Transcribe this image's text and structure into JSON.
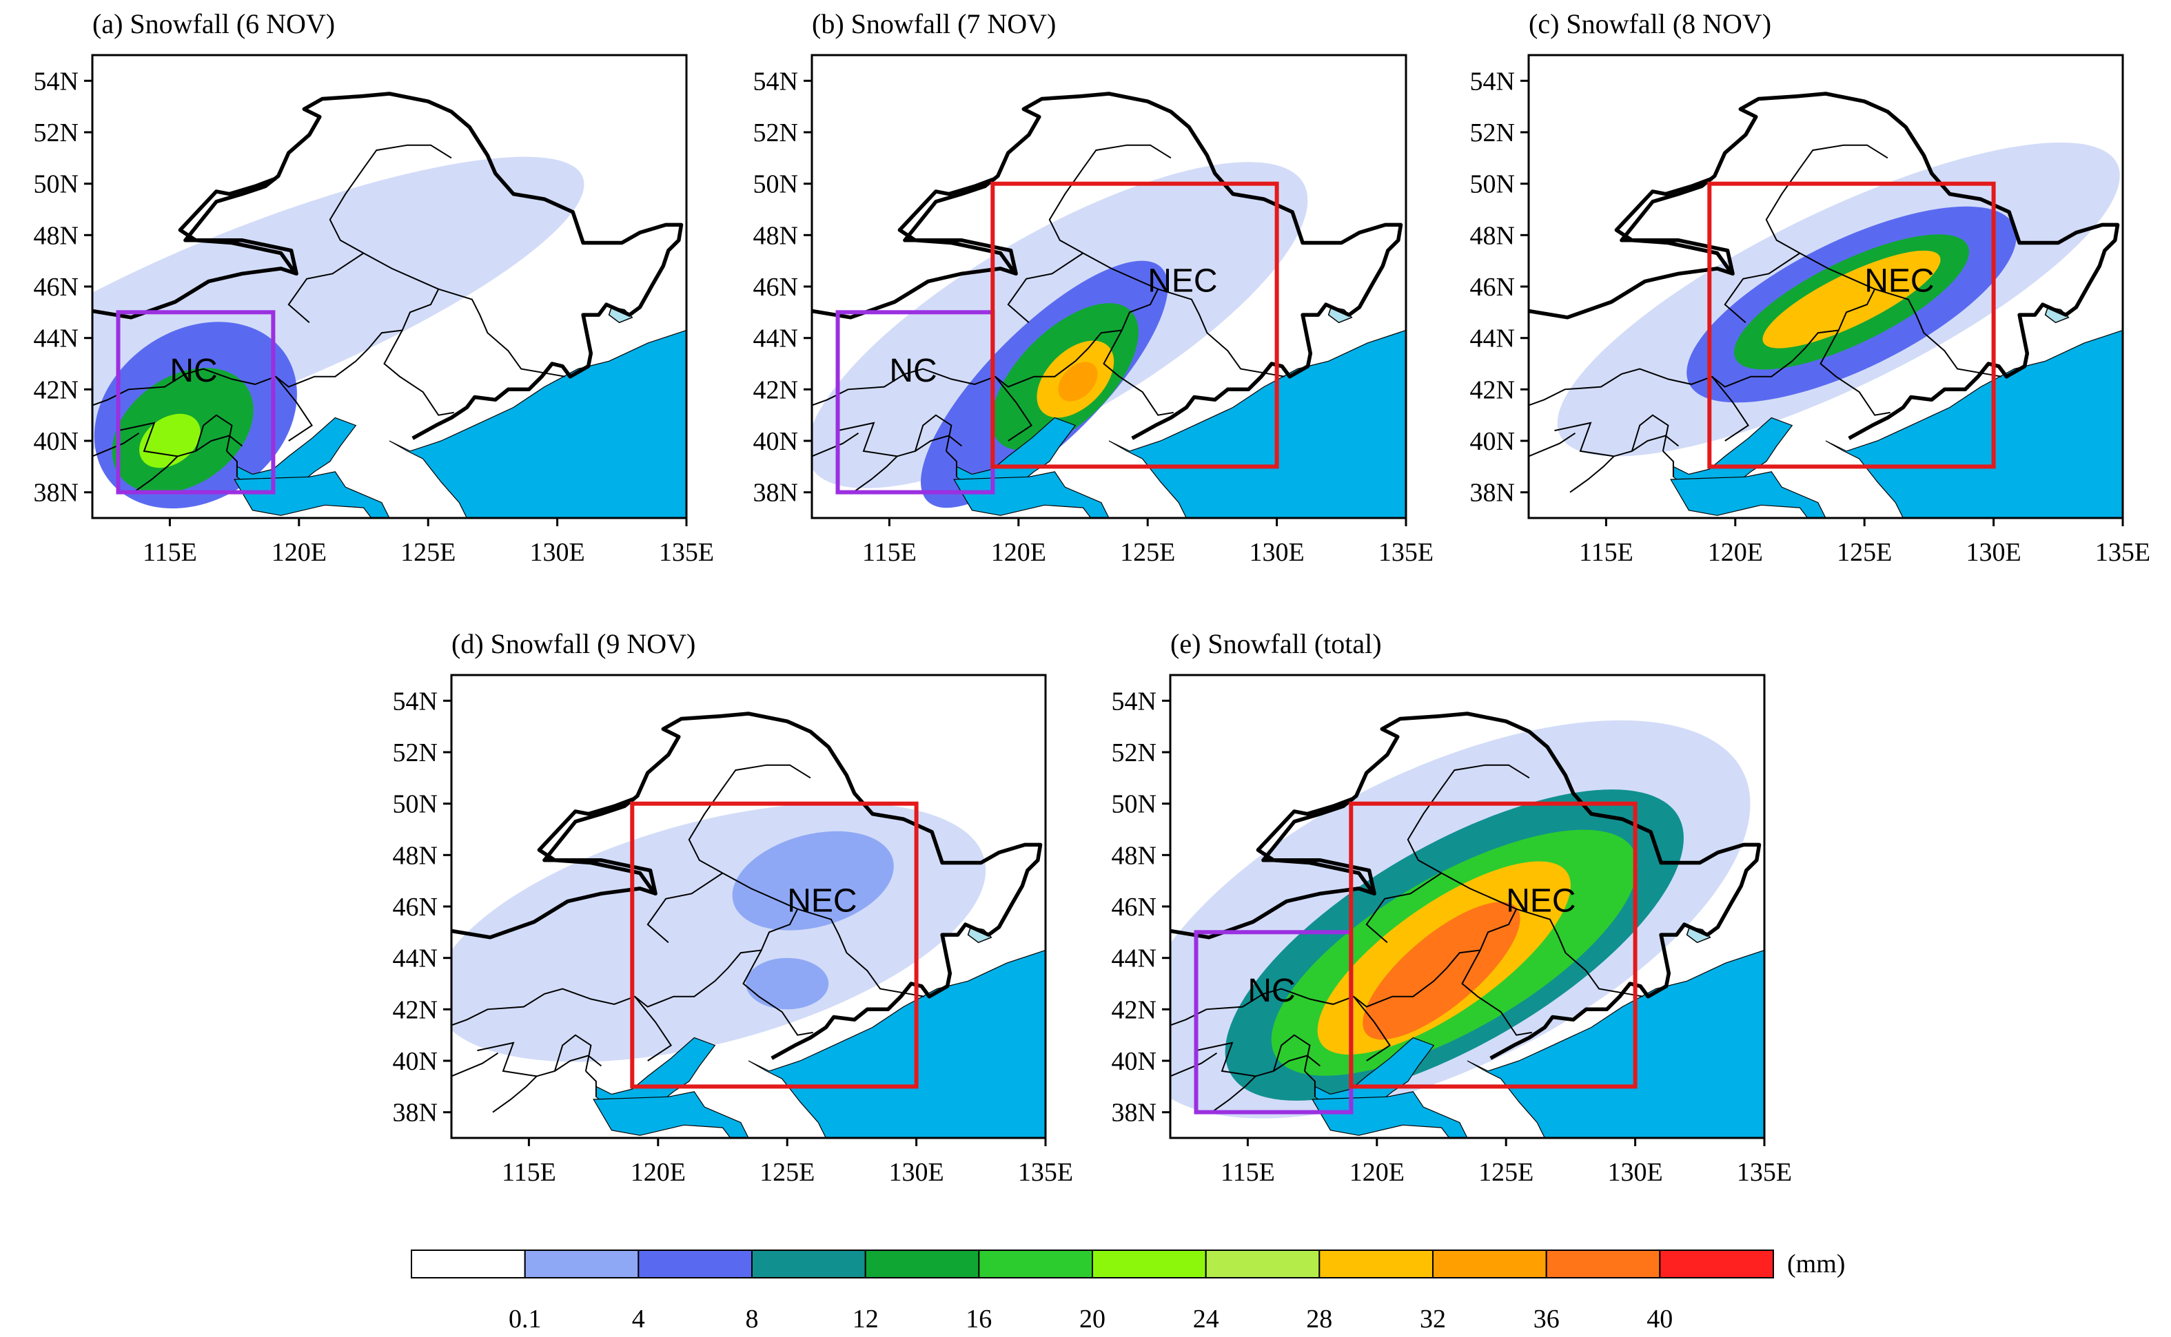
{
  "panels": [
    {
      "id": "a",
      "title": "(a) Snowfall (6 NOV)",
      "boxes": [
        {
          "kind": "NC",
          "label": "NC",
          "lon": [
            113,
            119
          ],
          "lat": [
            38,
            45
          ],
          "color": "#9b30e0"
        }
      ],
      "snow_cores": [
        {
          "lon": 118,
          "lat": 45,
          "rx": 14,
          "ry": 3.2,
          "rot": -22,
          "level": 1
        },
        {
          "lon": 116,
          "lat": 41,
          "rx": 4.2,
          "ry": 3.3,
          "rot": -35,
          "level": 3
        },
        {
          "lon": 115.5,
          "lat": 40.4,
          "rx": 3.0,
          "ry": 2.1,
          "rot": -35,
          "level": 5
        },
        {
          "lon": 115,
          "lat": 40.0,
          "rx": 1.3,
          "ry": 0.9,
          "rot": -35,
          "level": 7
        }
      ]
    },
    {
      "id": "b",
      "title": "(b) Snowfall (7 NOV)",
      "boxes": [
        {
          "kind": "NC",
          "label": "NC",
          "lon": [
            113,
            119
          ],
          "lat": [
            38,
            45
          ],
          "color": "#9b30e0"
        },
        {
          "kind": "NEC",
          "label": "NEC",
          "lon": [
            119,
            130
          ],
          "lat": [
            39,
            50
          ],
          "color": "#e31a1c"
        }
      ],
      "snow_cores": [
        {
          "lon": 121.5,
          "lat": 44.5,
          "rx": 11,
          "ry": 3.6,
          "rot": -30,
          "level": 1
        },
        {
          "lon": 121,
          "lat": 42.2,
          "rx": 6.4,
          "ry": 2.2,
          "rot": -45,
          "level": 3
        },
        {
          "lon": 121.8,
          "lat": 42.5,
          "rx": 3.6,
          "ry": 1.8,
          "rot": -45,
          "level": 5
        },
        {
          "lon": 122.2,
          "lat": 42.4,
          "rx": 1.8,
          "ry": 1.1,
          "rot": -45,
          "level": 9
        },
        {
          "lon": 122.3,
          "lat": 42.3,
          "rx": 0.9,
          "ry": 0.6,
          "rot": -45,
          "level": 10
        }
      ]
    },
    {
      "id": "c",
      "title": "(c) Snowfall (8 NOV)",
      "boxes": [
        {
          "kind": "NEC",
          "label": "NEC",
          "lon": [
            119,
            130
          ],
          "lat": [
            39,
            50
          ],
          "color": "#e31a1c"
        }
      ],
      "snow_cores": [
        {
          "lon": 124,
          "lat": 45.5,
          "rx": 12,
          "ry": 3.4,
          "rot": -26,
          "level": 1
        },
        {
          "lon": 124.5,
          "lat": 45.3,
          "rx": 7,
          "ry": 2.5,
          "rot": -26,
          "level": 3
        },
        {
          "lon": 124.5,
          "lat": 45.4,
          "rx": 5,
          "ry": 1.6,
          "rot": -26,
          "level": 5
        },
        {
          "lon": 124.5,
          "lat": 45.5,
          "rx": 3.8,
          "ry": 1.0,
          "rot": -26,
          "level": 9
        }
      ]
    },
    {
      "id": "d",
      "title": "(d) Snowfall (9 NOV)",
      "boxes": [
        {
          "kind": "NEC",
          "label": "NEC",
          "lon": [
            119,
            130
          ],
          "lat": [
            39,
            50
          ],
          "color": "#e31a1c"
        }
      ],
      "snow_cores": [
        {
          "lon": 122,
          "lat": 45,
          "rx": 11,
          "ry": 4.3,
          "rot": -15,
          "level": 1
        },
        {
          "lon": 126,
          "lat": 47,
          "rx": 3.2,
          "ry": 1.8,
          "rot": -15,
          "level": 2
        },
        {
          "lon": 125,
          "lat": 43,
          "rx": 1.6,
          "ry": 1.0,
          "rot": 0,
          "level": 2
        }
      ]
    },
    {
      "id": "e",
      "title": "(e) Snowfall (total)",
      "boxes": [
        {
          "kind": "NC",
          "label": "NC",
          "lon": [
            113,
            119
          ],
          "lat": [
            38,
            45
          ],
          "color": "#9b30e0"
        },
        {
          "kind": "NEC",
          "label": "NEC",
          "lon": [
            119,
            130
          ],
          "lat": [
            39,
            50
          ],
          "color": "#e31a1c"
        }
      ],
      "snow_cores": [
        {
          "lon": 122.5,
          "lat": 45.5,
          "rx": 13,
          "ry": 5.8,
          "rot": -26,
          "level": 1
        },
        {
          "lon": 123,
          "lat": 44.5,
          "rx": 10,
          "ry": 3.9,
          "rot": -30,
          "level": 4
        },
        {
          "lon": 123,
          "lat": 44.2,
          "rx": 8,
          "ry": 3.0,
          "rot": -30,
          "level": 6
        },
        {
          "lon": 122.6,
          "lat": 44,
          "rx": 5.8,
          "ry": 2.1,
          "rot": -35,
          "level": 9
        },
        {
          "lon": 122.5,
          "lat": 43.5,
          "rx": 3.8,
          "ry": 1.4,
          "rot": -40,
          "level": 11
        }
      ]
    }
  ],
  "map": {
    "lon_ticks": [
      "115E",
      "120E",
      "125E",
      "130E",
      "135E"
    ],
    "lat_ticks": [
      "38N",
      "40N",
      "42N",
      "44N",
      "46N",
      "48N",
      "50N",
      "52N",
      "54N"
    ],
    "lon_range": [
      112,
      135
    ],
    "lat_range": [
      37,
      55
    ],
    "sea_color": "#00b0e8",
    "lake_color": "#aee2ee"
  },
  "colorbar": {
    "unit": "(mm)",
    "labels": [
      "0.1",
      "4",
      "8",
      "12",
      "16",
      "20",
      "24",
      "28",
      "32",
      "36",
      "40"
    ],
    "colors": [
      "#ffffff",
      "#d2dcf8",
      "#8fa8f5",
      "#5a6af0",
      "#119090",
      "#10a634",
      "#2ccc2e",
      "#8df70b",
      "#b4ed4a",
      "#ffc000",
      "#ffa000",
      "#ff7518",
      "#ff2020"
    ]
  }
}
